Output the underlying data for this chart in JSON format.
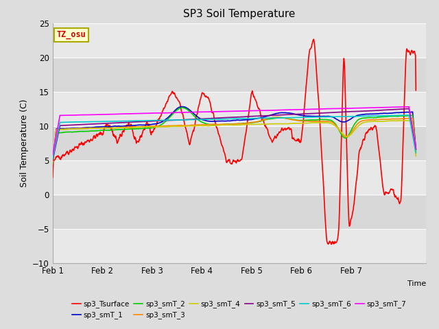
{
  "title": "SP3 Soil Temperature",
  "ylabel": "Soil Temperature (C)",
  "xlabel": "Time",
  "xlim": [
    0,
    7.5
  ],
  "ylim": [
    -10,
    25
  ],
  "yticks": [
    -10,
    -5,
    0,
    5,
    10,
    15,
    20,
    25
  ],
  "xtick_labels": [
    "Feb 1",
    "Feb 2",
    "Feb 3",
    "Feb 4",
    "Feb 5",
    "Feb 6",
    "Feb 7"
  ],
  "xtick_positions": [
    0,
    1,
    2,
    3,
    4,
    5,
    6
  ],
  "fig_bg_color": "#e0e0e0",
  "plot_bg_color": "#d8d8d8",
  "band_color_light": "#e8e8e8",
  "band_color_dark": "#d0d0d0",
  "annotation_text": "TZ_osu",
  "annotation_color": "#cc0000",
  "annotation_bg": "#ffffcc",
  "annotation_border": "#aaaa00",
  "series_order": [
    "sp3_Tsurface",
    "sp3_smT_1",
    "sp3_smT_2",
    "sp3_smT_3",
    "sp3_smT_4",
    "sp3_smT_5",
    "sp3_smT_6",
    "sp3_smT_7"
  ],
  "series": {
    "sp3_Tsurface": {
      "color": "#ff0000",
      "lw": 1.2
    },
    "sp3_smT_1": {
      "color": "#0000cc",
      "lw": 1.2
    },
    "sp3_smT_2": {
      "color": "#00cc00",
      "lw": 1.2
    },
    "sp3_smT_3": {
      "color": "#ff8800",
      "lw": 1.2
    },
    "sp3_smT_4": {
      "color": "#cccc00",
      "lw": 1.2
    },
    "sp3_smT_5": {
      "color": "#880088",
      "lw": 1.2
    },
    "sp3_smT_6": {
      "color": "#00cccc",
      "lw": 1.2
    },
    "sp3_smT_7": {
      "color": "#ff00ff",
      "lw": 1.2
    }
  }
}
